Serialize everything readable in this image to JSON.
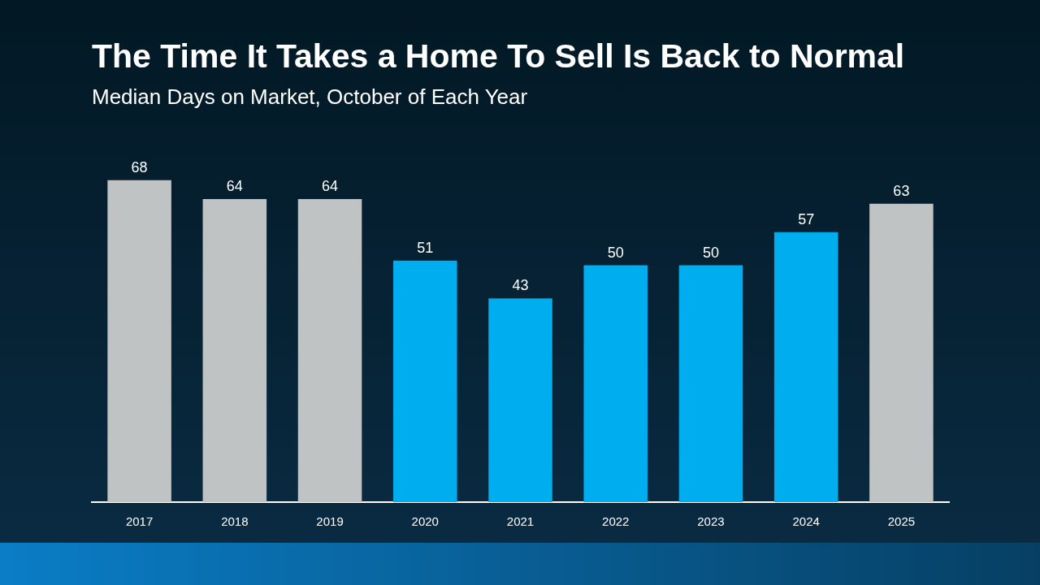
{
  "chart_data": {
    "type": "bar",
    "title": "The Time It Takes a Home To Sell Is Back to Normal",
    "subtitle": "Median Days on Market, October of Each Year",
    "categories": [
      "2017",
      "2018",
      "2019",
      "2020",
      "2021",
      "2022",
      "2023",
      "2024",
      "2025"
    ],
    "values": [
      68,
      64,
      64,
      51,
      43,
      50,
      50,
      57,
      63
    ],
    "colors": [
      "#bfc3c4",
      "#bfc3c4",
      "#bfc3c4",
      "#00adee",
      "#00adee",
      "#00adee",
      "#00adee",
      "#00adee",
      "#bfc3c4"
    ],
    "data_labels": true
  }
}
